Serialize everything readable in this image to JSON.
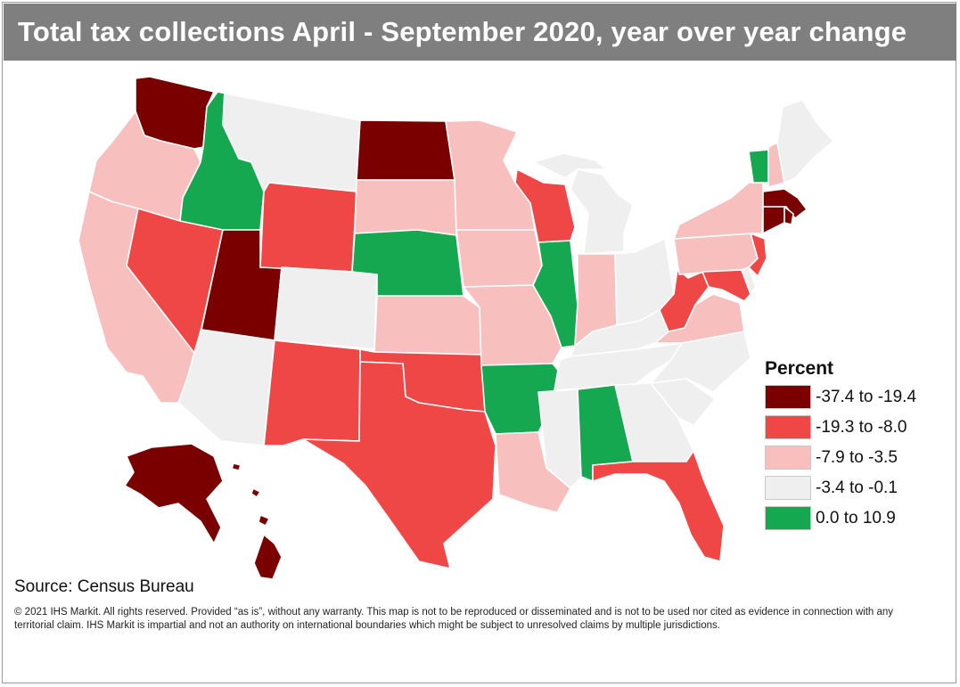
{
  "title": "Total tax collections April - September 2020, year over year change",
  "legend": {
    "title": "Percent",
    "items": [
      {
        "label": "-37.4 to -19.4",
        "color": "#7a0000"
      },
      {
        "label": "-19.3 to -8.0",
        "color": "#ef4646"
      },
      {
        "label": "-7.9 to -3.5",
        "color": "#f8bfbf"
      },
      {
        "label": "-3.4 to -0.1",
        "color": "#efefef"
      },
      {
        "label": "0.0 to 10.9",
        "color": "#16a850"
      }
    ]
  },
  "state_categories": {
    "WA": 0,
    "OR": 2,
    "CA": 2,
    "ID": 4,
    "NV": 1,
    "UT": 0,
    "AZ": 3,
    "MT": 3,
    "WY": 1,
    "CO": 3,
    "NM": 1,
    "ND": 0,
    "SD": 2,
    "NE": 4,
    "KS": 2,
    "OK": 1,
    "TX": 1,
    "MN": 2,
    "IA": 2,
    "MO": 2,
    "AR": 4,
    "LA": 2,
    "WI": 1,
    "IL": 4,
    "MI": 3,
    "IN": 2,
    "OH": 3,
    "KY": 3,
    "TN": 3,
    "MS": 3,
    "AL": 4,
    "GA": 3,
    "FL": 1,
    "SC": 3,
    "NC": 3,
    "VA": 2,
    "WV": 1,
    "MD": 1,
    "DE": 3,
    "PA": 2,
    "NJ": 1,
    "NY": 2,
    "CT": 0,
    "RI": 0,
    "MA": 0,
    "VT": 4,
    "NH": 2,
    "ME": 3,
    "AK": 0,
    "HI": 0
  },
  "source": "Source: Census Bureau",
  "disclaimer": "© 2021 IHS Markit. All rights reserved. Provided “as is”, without any warranty. This map is not to be reproduced or disseminated and is not to be used nor cited as evidence in connection with any territorial claim. IHS  Markit is impartial and not an authority on international boundaries which might be subject to unresolved claims by multiple jurisdictions."
}
